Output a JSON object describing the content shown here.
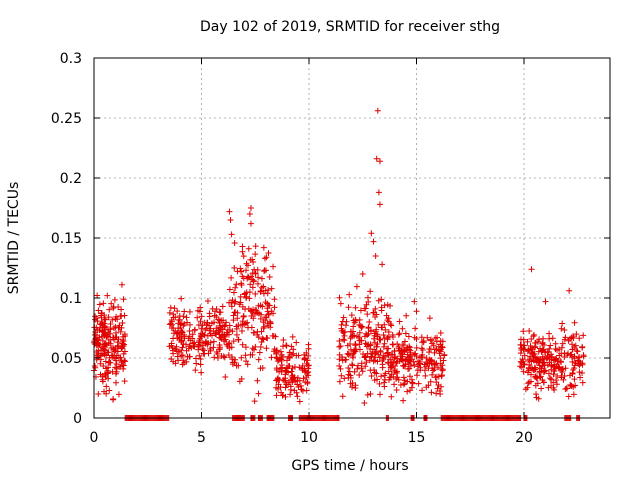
{
  "chart_data": {
    "type": "scatter",
    "title": "Day 102 of 2019, SRMTID for receiver sthg",
    "xlabel": "GPS time / hours",
    "ylabel": "SRMTID / TECUs",
    "xlim": [
      0,
      24
    ],
    "ylim": [
      0,
      0.3
    ],
    "xticks": [
      0,
      5,
      10,
      15,
      20
    ],
    "yticks": [
      0,
      0.05,
      0.1,
      0.15,
      0.2,
      0.25,
      0.3
    ],
    "ytick_labels": [
      "0",
      "0.05",
      "0.1",
      "0.15",
      "0.2",
      "0.25",
      "0.3"
    ],
    "grid": true,
    "marker": "+",
    "color": "#e00000",
    "clusters": [
      {
        "x_range": [
          0.0,
          1.45
        ],
        "y_center": 0.062,
        "y_spread": 0.022,
        "count": 210
      },
      {
        "x_range": [
          3.5,
          6.3
        ],
        "y_center": 0.068,
        "y_spread": 0.018,
        "count": 230
      },
      {
        "x_range": [
          6.3,
          8.4
        ],
        "y_center": 0.088,
        "y_spread": 0.035,
        "count": 190
      },
      {
        "x_range": [
          8.4,
          10.0
        ],
        "y_center": 0.04,
        "y_spread": 0.015,
        "count": 130
      },
      {
        "x_range": [
          11.4,
          13.8
        ],
        "y_center": 0.062,
        "y_spread": 0.028,
        "count": 230
      },
      {
        "x_range": [
          13.8,
          16.3
        ],
        "y_center": 0.048,
        "y_spread": 0.017,
        "count": 210
      },
      {
        "x_range": [
          19.8,
          22.8
        ],
        "y_center": 0.048,
        "y_spread": 0.017,
        "count": 260
      }
    ],
    "highlight_points": [
      {
        "x": 13.2,
        "y": 0.256
      },
      {
        "x": 13.15,
        "y": 0.216
      },
      {
        "x": 13.3,
        "y": 0.214
      },
      {
        "x": 13.25,
        "y": 0.188
      },
      {
        "x": 13.3,
        "y": 0.178
      },
      {
        "x": 12.9,
        "y": 0.154
      },
      {
        "x": 13.0,
        "y": 0.147
      },
      {
        "x": 13.1,
        "y": 0.135
      },
      {
        "x": 13.4,
        "y": 0.128
      },
      {
        "x": 7.3,
        "y": 0.175
      },
      {
        "x": 7.25,
        "y": 0.17
      },
      {
        "x": 7.3,
        "y": 0.162
      },
      {
        "x": 6.3,
        "y": 0.172
      },
      {
        "x": 6.35,
        "y": 0.165
      },
      {
        "x": 6.4,
        "y": 0.153
      },
      {
        "x": 7.9,
        "y": 0.142
      },
      {
        "x": 7.95,
        "y": 0.133
      },
      {
        "x": 7.2,
        "y": 0.141
      },
      {
        "x": 7.4,
        "y": 0.13
      },
      {
        "x": 6.9,
        "y": 0.118
      },
      {
        "x": 20.35,
        "y": 0.124
      },
      {
        "x": 21.0,
        "y": 0.097
      },
      {
        "x": 22.1,
        "y": 0.106
      },
      {
        "x": 12.5,
        "y": 0.12
      },
      {
        "x": 14.9,
        "y": 0.097
      },
      {
        "x": 15.0,
        "y": 0.089
      },
      {
        "x": 1.3,
        "y": 0.111
      },
      {
        "x": 0.2,
        "y": 0.02
      },
      {
        "x": 7.6,
        "y": 0.031
      },
      {
        "x": 16.1,
        "y": 0.02
      }
    ],
    "zero_ranges": [
      [
        1.45,
        3.5
      ],
      [
        6.45,
        7.0
      ],
      [
        7.3,
        7.5
      ],
      [
        7.65,
        7.85
      ],
      [
        8.05,
        8.4
      ],
      [
        9.05,
        9.25
      ],
      [
        9.55,
        11.4
      ],
      [
        13.6,
        13.7
      ],
      [
        14.75,
        14.9
      ],
      [
        15.35,
        15.5
      ],
      [
        16.15,
        19.85
      ],
      [
        20.0,
        20.15
      ],
      [
        21.9,
        22.2
      ],
      [
        22.45,
        22.6
      ]
    ]
  }
}
